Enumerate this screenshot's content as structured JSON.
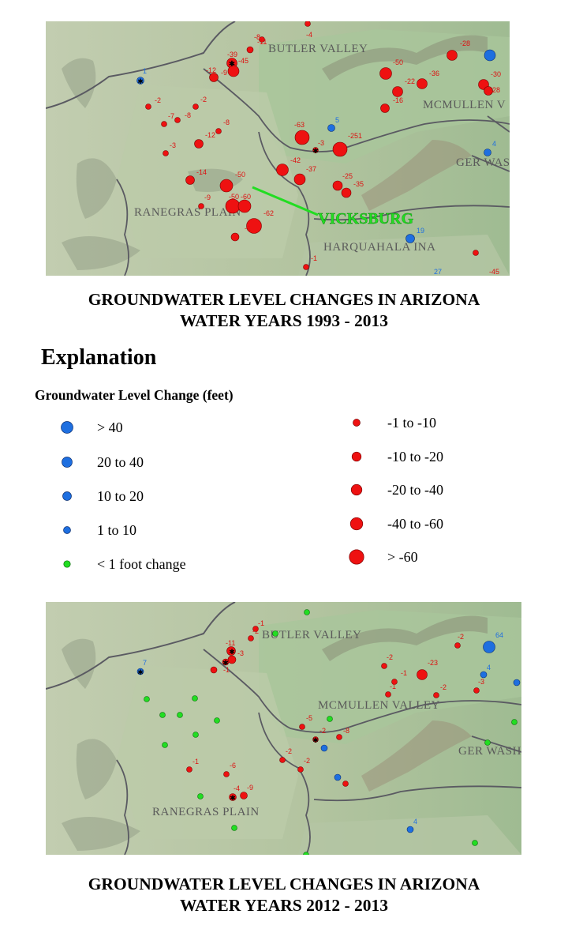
{
  "colors": {
    "decline": "#ee1111",
    "rise": "#1e6fe0",
    "stable": "#22dd22",
    "vicksburg_label": "#22dd22",
    "terrain_low": "#b9c9a5",
    "terrain_high": "#8fb087"
  },
  "map1": {
    "places": {
      "butler": "BUTLER VALLEY",
      "mcmullen": "MCMULLEN V",
      "ranegras": "RANEGRAS PLAIN",
      "harquahala": "HARQUAHALA INA",
      "tiger": "GER WAS",
      "vicksburg": "VICKSBURG"
    },
    "values": [
      "-8",
      "-11",
      "-4",
      "-39",
      "-45",
      "-12",
      "-9",
      "-2",
      "-7",
      "-8",
      "-2",
      "-12",
      "-3",
      "-8",
      "-63",
      "-3",
      "-251",
      "5",
      "-14",
      "-42",
      "-37",
      "-50",
      "-60",
      "-50",
      "-9",
      "-62",
      "-1",
      "-25",
      "-35",
      "-1",
      "19",
      "27",
      "-45",
      "-28",
      "-50",
      "-22",
      "-36",
      "-30",
      "-28",
      "-16",
      "4",
      "1"
    ]
  },
  "map2": {
    "places": {
      "butler": "BUTLER VALLEY",
      "mcmullen": "MCMULLEN VALLEY",
      "ranegras": "RANEGRAS PLAIN",
      "tiger": "GER WASH"
    },
    "values": [
      "-1",
      "-2",
      "-11",
      "-3",
      "-1",
      "-5",
      "-2",
      "-8",
      "-2",
      "-2",
      "-1",
      "-6",
      "-4",
      "-9",
      "-2",
      "-1",
      "-1",
      "-23",
      "-2",
      "-2",
      "-3",
      "4",
      "4",
      "7",
      "64"
    ]
  },
  "captions": {
    "top_line1": "GROUNDWATER LEVEL CHANGES IN ARIZONA",
    "top_line2": "WATER YEARS 1993 - 2013",
    "bottom_line1": "GROUNDWATER LEVEL CHANGES IN ARIZONA",
    "bottom_line2": "WATER YEARS 2012 - 2013"
  },
  "explanation": {
    "title": "Explanation",
    "legend_title": "Groundwater Level Change (feet)",
    "left_items": [
      {
        "label": "> 40",
        "color": "rise",
        "size": 7.5
      },
      {
        "label": "20 to 40",
        "color": "rise",
        "size": 6.5
      },
      {
        "label": "10 to 20",
        "color": "rise",
        "size": 5.5
      },
      {
        "label": "1 to 10",
        "color": "rise",
        "size": 4.5
      },
      {
        "label": "< 1 foot change",
        "color": "stable",
        "size": 4.2
      }
    ],
    "right_items": [
      {
        "label": "-1 to -10",
        "color": "decline",
        "size": 4.5
      },
      {
        "label": "-10 to -20",
        "color": "decline",
        "size": 5.8
      },
      {
        "label": "-20 to -40",
        "color": "decline",
        "size": 6.8
      },
      {
        "label": "-40 to -60",
        "color": "decline",
        "size": 7.8
      },
      {
        "label": "> -60",
        "color": "decline",
        "size": 9.2
      }
    ]
  }
}
